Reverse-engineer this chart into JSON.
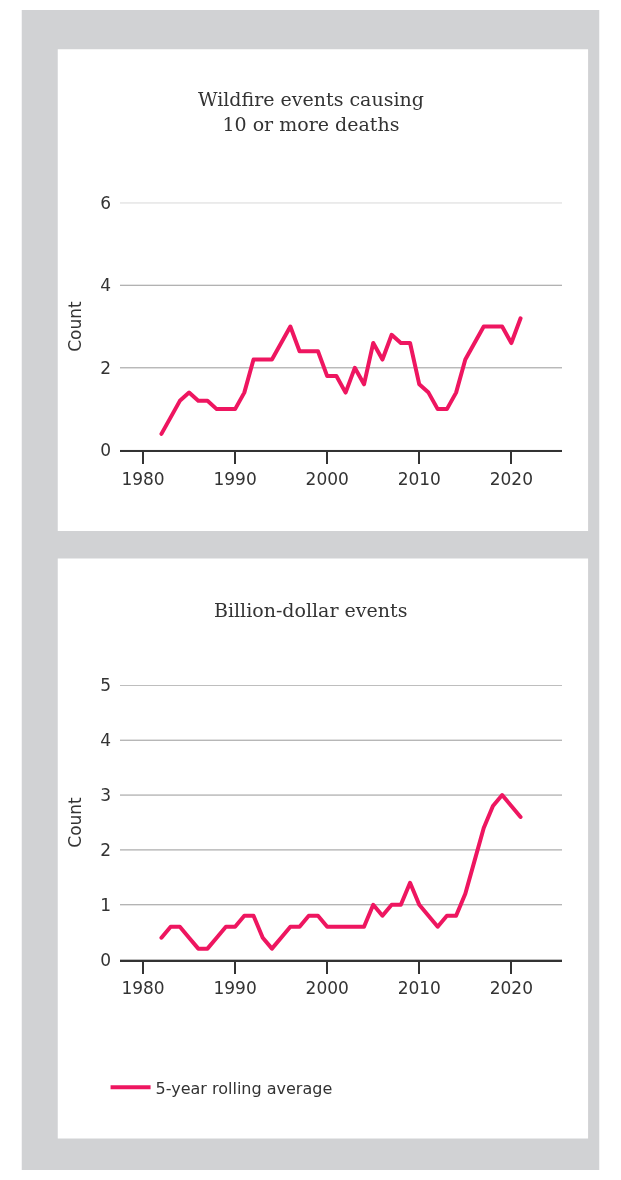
{
  "chart_data": [
    {
      "type": "line",
      "title": "Wildfire events causing\n10 or more deaths",
      "ylabel": "Count",
      "x": [
        1982,
        1983,
        1984,
        1985,
        1986,
        1987,
        1988,
        1989,
        1990,
        1991,
        1992,
        1993,
        1994,
        1995,
        1996,
        1997,
        1998,
        1999,
        2000,
        2001,
        2002,
        2003,
        2004,
        2005,
        2006,
        2007,
        2008,
        2009,
        2010,
        2011,
        2012,
        2013,
        2014,
        2015,
        2016,
        2017,
        2018,
        2019,
        2020,
        2021
      ],
      "xlim": [
        1977.5,
        2025.5
      ],
      "xticks": [
        1980,
        1990,
        2000,
        2010,
        2020
      ],
      "ylim": [
        0,
        6
      ],
      "yticks": [
        0,
        2,
        4,
        6
      ],
      "grid": "y",
      "line_style": "solid",
      "series": [
        {
          "color": "#ee1660",
          "values": [
            0.4,
            0.8,
            1.2,
            1.4,
            1.2,
            1.2,
            1.0,
            1.0,
            1.0,
            1.4,
            2.2,
            2.2,
            2.2,
            2.6,
            3.0,
            2.4,
            2.4,
            2.4,
            1.8,
            1.8,
            1.4,
            2.0,
            1.6,
            2.6,
            2.2,
            2.8,
            2.6,
            2.6,
            1.6,
            1.4,
            1.0,
            1.0,
            1.4,
            2.2,
            2.6,
            3.0,
            3.0,
            3.0,
            2.6,
            3.2
          ]
        }
      ]
    },
    {
      "type": "line",
      "title": "Billion-dollar events",
      "ylabel": "Count",
      "x": [
        1982,
        1983,
        1984,
        1985,
        1986,
        1987,
        1988,
        1989,
        1990,
        1991,
        1992,
        1993,
        1994,
        1995,
        1996,
        1997,
        1998,
        1999,
        2000,
        2001,
        2002,
        2003,
        2004,
        2005,
        2006,
        2007,
        2008,
        2009,
        2010,
        2011,
        2012,
        2013,
        2014,
        2015,
        2016,
        2017,
        2018,
        2019,
        2020,
        2021
      ],
      "xlim": [
        1977.5,
        2025.5
      ],
      "xticks": [
        1980,
        1990,
        2000,
        2010,
        2020
      ],
      "ylim": [
        0,
        5
      ],
      "yticks": [
        0,
        1,
        2,
        3,
        4,
        5
      ],
      "grid": "y",
      "line_style": "solid",
      "legend": "bottom",
      "series": [
        {
          "name": "5-year rolling average",
          "color": "#ee1660",
          "values": [
            0.4,
            0.6,
            0.6,
            0.4,
            0.2,
            0.2,
            0.4,
            0.6,
            0.6,
            0.8,
            0.8,
            0.4,
            0.2,
            0.4,
            0.6,
            0.6,
            0.8,
            0.8,
            0.6,
            0.6,
            0.6,
            0.6,
            0.6,
            1.0,
            0.8,
            1.0,
            1.0,
            1.4,
            1.0,
            0.8,
            0.6,
            0.8,
            0.8,
            1.2,
            1.8,
            2.4,
            2.8,
            3.0,
            2.8,
            2.6
          ]
        }
      ]
    }
  ]
}
